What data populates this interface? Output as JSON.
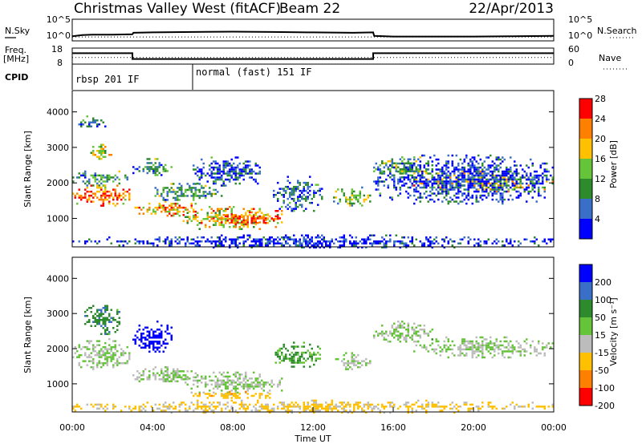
{
  "header": {
    "station": "Christmas Valley West (fitACF)",
    "beam": "Beam 22",
    "date": "22/Apr/2013"
  },
  "chart_data": [
    {
      "type": "line",
      "panel": "noise",
      "left_label": "N.Sky",
      "right_label": "N.Search",
      "left_ticks": [
        "10^5",
        "10^0"
      ],
      "right_ticks": [
        "10^5",
        "10^0"
      ],
      "scale": "log",
      "series": [
        {
          "style": "solid",
          "x_hours": [
            0,
            0.5,
            1,
            2,
            3,
            3.05,
            4,
            6,
            8,
            10,
            12,
            14,
            15,
            15.05,
            16,
            18,
            20,
            22,
            24
          ],
          "values_log10": [
            1.0,
            1.3,
            1.4,
            1.4,
            1.5,
            1.9,
            2.0,
            2.1,
            2.2,
            2.1,
            2.0,
            1.9,
            2.0,
            1.1,
            0.9,
            0.9,
            0.9,
            1.0,
            1.1
          ]
        },
        {
          "style": "dotted",
          "x_hours": [
            0,
            24
          ],
          "values_log10": [
            0.8,
            0.8
          ]
        }
      ]
    },
    {
      "type": "line",
      "panel": "frequency",
      "left_label": "Freq.",
      "left_unit": "[MHz]",
      "left_ticks": [
        "18",
        "8"
      ],
      "right_label": "Nave",
      "right_ticks": [
        "60",
        "0"
      ],
      "series": [
        {
          "style": "solid",
          "x_hours": [
            0,
            3,
            3,
            15,
            15,
            24
          ],
          "values": [
            15,
            15,
            11,
            11,
            15,
            15
          ]
        },
        {
          "style": "dotted",
          "x_hours": [
            0,
            24
          ],
          "values": [
            12,
            12
          ]
        }
      ]
    },
    {
      "type": "table",
      "panel": "cpid",
      "label": "CPID",
      "segments": [
        {
          "start_hour": 0,
          "text": "rbsp 201 IF"
        },
        {
          "start_hour": 6,
          "text": "normal (fast) 151 IF"
        }
      ]
    },
    {
      "type": "heatmap",
      "panel": "power",
      "ylabel": "Slant Range [km]",
      "yticks": [
        1000,
        2000,
        3000,
        4000
      ],
      "ylim": [
        200,
        4600
      ],
      "xlim_hours": [
        0,
        24
      ],
      "colorbar": {
        "label": "Power [dB]",
        "ticks": [
          "4",
          "8",
          "12",
          "16",
          "20",
          "24",
          "28"
        ],
        "range": [
          0,
          30
        ]
      },
      "regions": [
        {
          "t": [
            0.0,
            2.9
          ],
          "r": [
            1350,
            1950
          ],
          "v": 25
        },
        {
          "t": [
            0.0,
            2.9
          ],
          "r": [
            1950,
            2350
          ],
          "v": 10
        },
        {
          "t": [
            0.8,
            2.0
          ],
          "r": [
            2650,
            3100
          ],
          "v": 16
        },
        {
          "t": [
            0.2,
            1.8
          ],
          "r": [
            3550,
            3900
          ],
          "v": 6
        },
        {
          "t": [
            3.0,
            6.5
          ],
          "r": [
            1050,
            1500
          ],
          "v": 22
        },
        {
          "t": [
            4.0,
            7.5
          ],
          "r": [
            1500,
            2000
          ],
          "v": 11
        },
        {
          "t": [
            3.0,
            5.0
          ],
          "r": [
            2200,
            2700
          ],
          "v": 9
        },
        {
          "t": [
            5.5,
            10.5
          ],
          "r": [
            700,
            1350
          ],
          "v": 19
        },
        {
          "t": [
            7.0,
            10.5
          ],
          "r": [
            800,
            1200
          ],
          "v": 26
        },
        {
          "t": [
            6.0,
            9.5
          ],
          "r": [
            1900,
            2800
          ],
          "v": 5
        },
        {
          "t": [
            10.0,
            12.5
          ],
          "r": [
            1200,
            2200
          ],
          "v": 6
        },
        {
          "t": [
            13.0,
            14.9
          ],
          "r": [
            1350,
            1900
          ],
          "v": 14
        },
        {
          "t": [
            15.0,
            18.0
          ],
          "r": [
            2100,
            2750
          ],
          "v": 13
        },
        {
          "t": [
            17.0,
            24.0
          ],
          "r": [
            1750,
            2350
          ],
          "v": 17
        },
        {
          "t": [
            15.0,
            24.0
          ],
          "r": [
            1400,
            2800
          ],
          "v": 4
        },
        {
          "t": [
            0.0,
            24.0
          ],
          "r": [
            200,
            550
          ],
          "v": 3
        }
      ]
    },
    {
      "type": "heatmap",
      "panel": "velocity",
      "ylabel": "Slant Range [km]",
      "yticks": [
        1000,
        2000,
        3000,
        4000
      ],
      "ylim": [
        200,
        4600
      ],
      "xlabel": "Time UT",
      "xticks": [
        "00:00",
        "04:00",
        "08:00",
        "12:00",
        "16:00",
        "20:00",
        "00:00"
      ],
      "xlim_hours": [
        0,
        24
      ],
      "colorbar": {
        "label": "Velocity [m s⁻¹]",
        "ticks": [
          "200",
          "100",
          "50",
          "15",
          "-15",
          "-50",
          "-100",
          "-200"
        ]
      },
      "regions": [
        {
          "t": [
            0.0,
            2.9
          ],
          "r": [
            1400,
            2300
          ],
          "v": 0
        },
        {
          "t": [
            0.6,
            2.4
          ],
          "r": [
            2400,
            3300
          ],
          "v": 60
        },
        {
          "t": [
            3.0,
            5.0
          ],
          "r": [
            1900,
            2800
          ],
          "v": 200
        },
        {
          "t": [
            3.0,
            6.5
          ],
          "r": [
            1050,
            1500
          ],
          "v": 0
        },
        {
          "t": [
            5.5,
            10.5
          ],
          "r": [
            700,
            1350
          ],
          "v": 0
        },
        {
          "t": [
            6.0,
            10.0
          ],
          "r": [
            600,
            800
          ],
          "v": -60
        },
        {
          "t": [
            10.0,
            12.5
          ],
          "r": [
            1500,
            2200
          ],
          "v": 40
        },
        {
          "t": [
            13.0,
            14.9
          ],
          "r": [
            1400,
            1900
          ],
          "v": 0
        },
        {
          "t": [
            15.0,
            18.0
          ],
          "r": [
            2200,
            2800
          ],
          "v": 0
        },
        {
          "t": [
            17.0,
            24.0
          ],
          "r": [
            1750,
            2350
          ],
          "v": 0
        },
        {
          "t": [
            0.0,
            24.0
          ],
          "r": [
            200,
            550
          ],
          "v": -40
        }
      ]
    }
  ],
  "colors": {
    "power_scale": [
      "#0000ff",
      "#3a6fc8",
      "#2d8a2d",
      "#66c43a",
      "#ffc000",
      "#ff7f00",
      "#ff0000"
    ],
    "velocity_scale": [
      "#0000ff",
      "#3a6fc8",
      "#2d8a2d",
      "#66c43a",
      "#bcbcbc",
      "#ffc000",
      "#ff7f00",
      "#ff0000"
    ]
  }
}
